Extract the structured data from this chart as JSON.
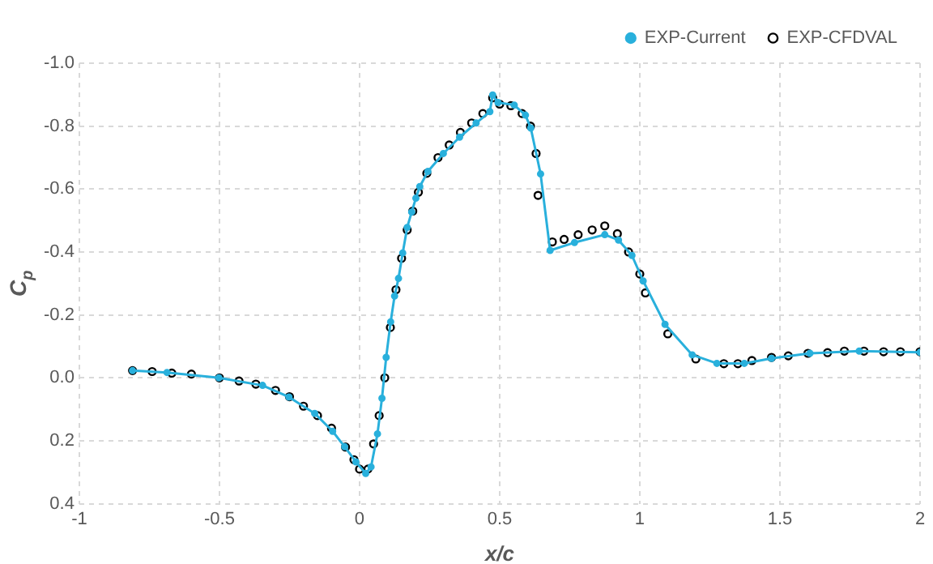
{
  "chart_data": {
    "type": "line",
    "xlabel": "x/c",
    "ylabel": "C$_{p}$",
    "xlim": [
      -1,
      2
    ],
    "xticks": [
      -1,
      -0.5,
      0,
      0.5,
      1,
      1.5,
      2
    ],
    "ylim": [
      0.4,
      -1.0
    ],
    "yticks": [
      {
        "value": -1.0,
        "label": "-1.0"
      },
      {
        "value": -0.8,
        "label": "-0.8"
      },
      {
        "value": -0.6,
        "label": "-0.6"
      },
      {
        "value": -0.4,
        "label": "-0.4"
      },
      {
        "value": -0.2,
        "label": "-0.2"
      },
      {
        "value": 0,
        "label": "0.0"
      },
      {
        "value": 0.2,
        "label": "0.2"
      },
      {
        "value": 0.4,
        "label": "0.4"
      }
    ],
    "grid": true,
    "legend": "top right",
    "marker": "circle",
    "series": [
      {
        "name": "EXP-Current",
        "color": "#29b0dc",
        "x": [
          -0.81,
          -0.687,
          -0.502,
          -0.346,
          -0.252,
          -0.16,
          -0.096,
          -0.053,
          -0.013,
          0.022,
          0.041,
          0.064,
          0.08,
          0.095,
          0.111,
          0.125,
          0.139,
          0.154,
          0.17,
          0.186,
          0.201,
          0.215,
          0.244,
          0.299,
          0.357,
          0.416,
          0.465,
          0.475,
          0.494,
          0.552,
          0.592,
          0.611,
          0.646,
          0.68,
          0.767,
          0.875,
          0.924,
          0.972,
          1.012,
          1.09,
          1.187,
          1.275,
          1.373,
          1.47,
          1.607,
          1.783,
          2.0
        ],
        "values": [
          -0.023,
          -0.017,
          0.0,
          0.024,
          0.061,
          0.113,
          0.17,
          0.219,
          0.267,
          0.304,
          0.283,
          0.178,
          0.065,
          -0.065,
          -0.178,
          -0.26,
          -0.316,
          -0.397,
          -0.478,
          -0.527,
          -0.571,
          -0.608,
          -0.656,
          -0.713,
          -0.765,
          -0.81,
          -0.846,
          -0.899,
          -0.875,
          -0.867,
          -0.835,
          -0.794,
          -0.648,
          -0.405,
          -0.43,
          -0.455,
          -0.438,
          -0.389,
          -0.308,
          -0.17,
          -0.073,
          -0.046,
          -0.046,
          -0.062,
          -0.078,
          -0.085,
          -0.081
        ]
      },
      {
        "name": "EXP-CFDVAL",
        "type": "scatter",
        "color": "#000000",
        "x": [
          -0.81,
          -0.74,
          -0.67,
          -0.6,
          -0.5,
          -0.43,
          -0.37,
          -0.3,
          -0.25,
          -0.2,
          -0.15,
          -0.1,
          -0.05,
          -0.02,
          0.0,
          0.03,
          0.05,
          0.07,
          0.09,
          0.11,
          0.13,
          0.15,
          0.17,
          0.19,
          0.21,
          0.24,
          0.28,
          0.32,
          0.36,
          0.4,
          0.44,
          0.475,
          0.5,
          0.54,
          0.58,
          0.61,
          0.63,
          0.637,
          0.688,
          0.73,
          0.78,
          0.83,
          0.875,
          0.92,
          0.96,
          1.0,
          1.02,
          1.1,
          1.2,
          1.3,
          1.35,
          1.4,
          1.47,
          1.53,
          1.6,
          1.67,
          1.73,
          1.8,
          1.87,
          1.93,
          2.0
        ],
        "values": [
          -0.023,
          -0.02,
          -0.015,
          -0.012,
          0.0,
          0.01,
          0.02,
          0.04,
          0.06,
          0.09,
          0.12,
          0.16,
          0.22,
          0.26,
          0.29,
          0.29,
          0.21,
          0.12,
          0.0,
          -0.16,
          -0.28,
          -0.38,
          -0.47,
          -0.53,
          -0.59,
          -0.65,
          -0.7,
          -0.74,
          -0.78,
          -0.81,
          -0.84,
          -0.89,
          -0.87,
          -0.865,
          -0.84,
          -0.8,
          -0.713,
          -0.58,
          -0.432,
          -0.44,
          -0.455,
          -0.47,
          -0.483,
          -0.458,
          -0.4,
          -0.33,
          -0.27,
          -0.14,
          -0.06,
          -0.045,
          -0.045,
          -0.055,
          -0.065,
          -0.07,
          -0.078,
          -0.08,
          -0.085,
          -0.085,
          -0.083,
          -0.083,
          -0.083
        ]
      }
    ]
  }
}
